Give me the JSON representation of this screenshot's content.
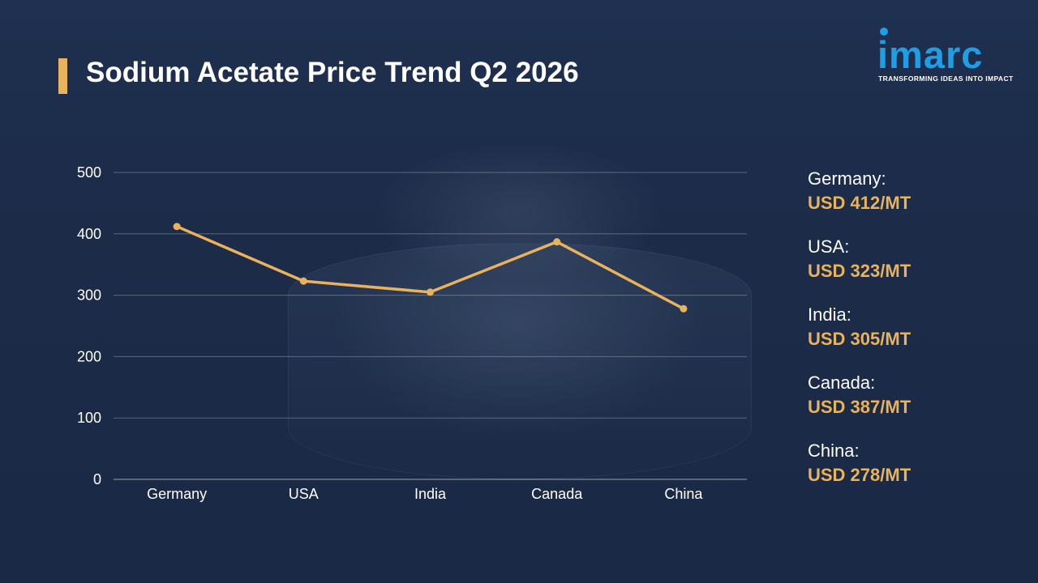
{
  "header": {
    "title": "Sodium Acetate Price Trend Q2 2026"
  },
  "logo": {
    "word": "imarc",
    "tagline": "TRANSFORMING IDEAS INTO IMPACT"
  },
  "colors": {
    "accent": "#e9b25c",
    "brand": "#1e9ee6",
    "background": "#1c2d4a",
    "text": "#ffffff"
  },
  "chart_data": {
    "type": "line",
    "title": "Sodium Acetate Price Trend Q2 2026",
    "categories": [
      "Germany",
      "USA",
      "India",
      "Canada",
      "China"
    ],
    "series": [
      {
        "values": [
          412,
          323,
          305,
          387,
          278
        ]
      }
    ],
    "ylim": [
      0,
      500
    ],
    "yticks": [
      0,
      100,
      200,
      300,
      400,
      500
    ],
    "xlabel": "",
    "ylabel": "",
    "grid": true,
    "legend": "right"
  },
  "legend": {
    "items": [
      {
        "country": "Germany:",
        "value": "USD 412/MT"
      },
      {
        "country": "USA:",
        "value": "USD 323/MT"
      },
      {
        "country": "India:",
        "value": "USD 305/MT"
      },
      {
        "country": "Canada:",
        "value": "USD 387/MT"
      },
      {
        "country": "China:",
        "value": "USD 278/MT"
      }
    ]
  }
}
